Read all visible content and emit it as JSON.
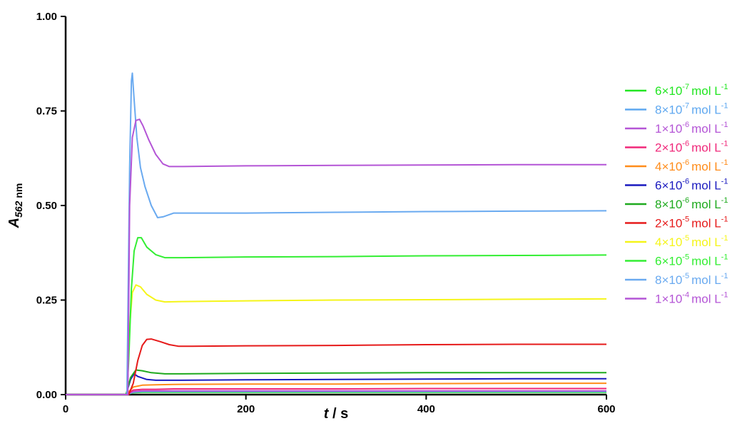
{
  "chart_data": {
    "type": "line",
    "xlabel": {
      "var": "t",
      "rest": " / s"
    },
    "ylabel": {
      "var": "A",
      "sub_italic": "562",
      "sub_plain": " nm"
    },
    "xlim": [
      0,
      600
    ],
    "ylim": [
      0,
      1.0
    ],
    "xticks": [
      0,
      200,
      400,
      600
    ],
    "xtick_labels": [
      "0",
      "200",
      "400",
      "600"
    ],
    "yticks": [
      0,
      0.25,
      0.5,
      0.75,
      1.0
    ],
    "ytick_labels": [
      "0.00",
      "0.25",
      "0.50",
      "0.75",
      "1.00"
    ],
    "grid": false,
    "legend_position": "right",
    "series": [
      {
        "name": "6×10-7 mol L-1",
        "mantissa": "6×10",
        "exponent": "-7",
        "unit": "mol L",
        "unit_exp": "-1",
        "color": "#22e622",
        "x": [
          0,
          67,
          75,
          85,
          100,
          120,
          200,
          300,
          400,
          500,
          600
        ],
        "y": [
          0,
          0,
          0.005,
          0.006,
          0.006,
          0.006,
          0.006,
          0.006,
          0.006,
          0.006,
          0.006
        ]
      },
      {
        "name": "8×10-7 mol L-1",
        "mantissa": "8×10",
        "exponent": "-7",
        "unit": "mol L",
        "unit_exp": "-1",
        "color": "#5fa8f0",
        "x": [
          0,
          67,
          75,
          85,
          100,
          120,
          200,
          300,
          400,
          500,
          600
        ],
        "y": [
          0,
          0,
          0.006,
          0.008,
          0.008,
          0.008,
          0.008,
          0.008,
          0.008,
          0.008,
          0.008
        ]
      },
      {
        "name": "1×10-6 mol L-1",
        "mantissa": "1×10",
        "exponent": "-6",
        "unit": "mol L",
        "unit_exp": "-1",
        "color": "#b455d6",
        "x": [
          0,
          67,
          75,
          85,
          100,
          120,
          200,
          300,
          400,
          500,
          600
        ],
        "y": [
          0,
          0,
          0.008,
          0.01,
          0.01,
          0.01,
          0.01,
          0.01,
          0.01,
          0.01,
          0.01
        ]
      },
      {
        "name": "2×10-6 mol L-1",
        "mantissa": "2×10",
        "exponent": "-6",
        "unit": "mol L",
        "unit_exp": "-1",
        "color": "#f0287a",
        "x": [
          0,
          67,
          75,
          85,
          100,
          120,
          200,
          300,
          400,
          500,
          600
        ],
        "y": [
          0,
          0,
          0.012,
          0.014,
          0.014,
          0.015,
          0.015,
          0.015,
          0.016,
          0.016,
          0.016
        ]
      },
      {
        "name": "4×10-6 mol L-1",
        "mantissa": "4×10",
        "exponent": "-6",
        "unit": "mol L",
        "unit_exp": "-1",
        "color": "#ff8c1a",
        "x": [
          0,
          67,
          75,
          85,
          100,
          120,
          200,
          300,
          400,
          500,
          600
        ],
        "y": [
          0,
          0,
          0.02,
          0.025,
          0.026,
          0.027,
          0.028,
          0.028,
          0.029,
          0.03,
          0.03
        ]
      },
      {
        "name": "6×10-6 mol L-1",
        "mantissa": "6×10",
        "exponent": "-6",
        "unit": "mol L",
        "unit_exp": "-1",
        "color": "#1a1abf",
        "x": [
          0,
          67,
          72,
          76,
          80,
          90,
          100,
          120,
          200,
          300,
          400,
          500,
          600
        ],
        "y": [
          0,
          0,
          0.04,
          0.055,
          0.048,
          0.04,
          0.038,
          0.038,
          0.039,
          0.04,
          0.041,
          0.042,
          0.042
        ]
      },
      {
        "name": "8×10-6 mol L-1",
        "mantissa": "8×10",
        "exponent": "-6",
        "unit": "mol L",
        "unit_exp": "-1",
        "color": "#1faa1f",
        "x": [
          0,
          67,
          72,
          78,
          85,
          95,
          110,
          130,
          200,
          300,
          400,
          500,
          600
        ],
        "y": [
          0,
          0,
          0.045,
          0.065,
          0.063,
          0.058,
          0.055,
          0.055,
          0.056,
          0.057,
          0.058,
          0.058,
          0.058
        ]
      },
      {
        "name": "2×10-5 mol L-1",
        "mantissa": "2×10",
        "exponent": "-5",
        "unit": "mol L",
        "unit_exp": "-1",
        "color": "#e61a1a",
        "x": [
          0,
          70,
          75,
          80,
          85,
          90,
          95,
          105,
          115,
          125,
          140,
          200,
          300,
          400,
          500,
          600
        ],
        "y": [
          0,
          0,
          0.03,
          0.09,
          0.13,
          0.146,
          0.147,
          0.14,
          0.132,
          0.128,
          0.128,
          0.129,
          0.13,
          0.132,
          0.133,
          0.133
        ]
      },
      {
        "name": "4×10-5 mol L-1",
        "mantissa": "4×10",
        "exponent": "-5",
        "unit": "mol L",
        "unit_exp": "-1",
        "color": "#f5f51a",
        "x": [
          0,
          68,
          71,
          74,
          78,
          83,
          90,
          100,
          110,
          130,
          200,
          300,
          400,
          500,
          600
        ],
        "y": [
          0,
          0,
          0.18,
          0.27,
          0.29,
          0.285,
          0.265,
          0.25,
          0.245,
          0.246,
          0.248,
          0.25,
          0.251,
          0.252,
          0.253
        ]
      },
      {
        "name": "6×10-5 mol L-1",
        "mantissa": "6×10",
        "exponent": "-5",
        "unit": "mol L",
        "unit_exp": "-1",
        "color": "#33ee33",
        "x": [
          0,
          68,
          70,
          73,
          76,
          80,
          84,
          90,
          100,
          110,
          130,
          200,
          300,
          400,
          500,
          600
        ],
        "y": [
          0,
          0,
          0.09,
          0.28,
          0.38,
          0.415,
          0.415,
          0.39,
          0.37,
          0.362,
          0.362,
          0.364,
          0.365,
          0.367,
          0.368,
          0.369
        ]
      },
      {
        "name": "8×10-5 mol L-1",
        "mantissa": "8×10",
        "exponent": "-5",
        "unit": "mol L",
        "unit_exp": "-1",
        "color": "#6aaaf0",
        "x": [
          0,
          68,
          71,
          73,
          74,
          76,
          79,
          83,
          88,
          95,
          102,
          108,
          120,
          200,
          300,
          400,
          500,
          600
        ],
        "y": [
          0,
          0,
          0.6,
          0.83,
          0.85,
          0.78,
          0.68,
          0.6,
          0.55,
          0.5,
          0.468,
          0.47,
          0.48,
          0.48,
          0.482,
          0.484,
          0.485,
          0.486
        ]
      },
      {
        "name": "1×10-4 mol L-1",
        "mantissa": "1×10",
        "exponent": "-4",
        "unit": "mol L",
        "unit_exp": "-1",
        "color": "#b455d6",
        "x": [
          0,
          69,
          71,
          74,
          78,
          82,
          86,
          92,
          100,
          108,
          115,
          130,
          200,
          300,
          400,
          500,
          600
        ],
        "y": [
          0,
          0,
          0.5,
          0.68,
          0.725,
          0.728,
          0.71,
          0.675,
          0.635,
          0.61,
          0.603,
          0.603,
          0.605,
          0.606,
          0.607,
          0.608,
          0.608
        ]
      }
    ]
  }
}
